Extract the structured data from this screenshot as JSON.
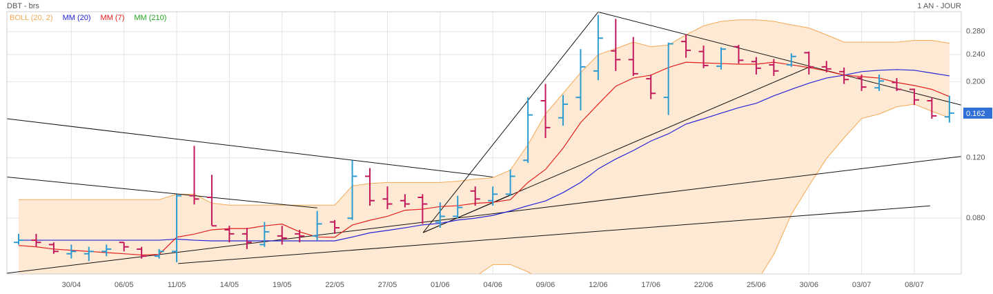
{
  "chart_data": {
    "type": "ohlc",
    "title": "DBT - brs",
    "period": "1 AN - JOUR",
    "categories": [
      null,
      null,
      null,
      "30/04",
      null,
      null,
      "06/05",
      null,
      null,
      "11/05",
      null,
      null,
      "14/05",
      null,
      null,
      "19/05",
      null,
      null,
      "22/05",
      null,
      null,
      "27/05",
      null,
      null,
      "01/06",
      null,
      null,
      "04/06",
      null,
      null,
      "09/06",
      null,
      null,
      "12/06",
      null,
      null,
      "17/06",
      null,
      null,
      "22/06",
      null,
      null,
      "25/06",
      null,
      null,
      "30/06",
      null,
      null,
      "03/07",
      null,
      null,
      "08/07",
      null,
      null
    ],
    "open": [
      0.068,
      0.069,
      0.067,
      0.063,
      0.063,
      0.064,
      0.068,
      0.065,
      0.062,
      0.064,
      0.093,
      0.092,
      0.074,
      0.072,
      0.067,
      0.071,
      0.072,
      0.071,
      0.078,
      0.08,
      0.106,
      0.091,
      0.09,
      0.092,
      0.078,
      0.081,
      0.096,
      0.09,
      0.094,
      0.118,
      0.176,
      0.157,
      0.18,
      0.215,
      0.246,
      0.232,
      0.204,
      0.18,
      0.262,
      0.245,
      0.222,
      0.253,
      0.229,
      0.224,
      0.224,
      0.243,
      0.221,
      0.214,
      0.205,
      0.192,
      0.199,
      0.19,
      0.176,
      0.158
    ],
    "high": [
      0.072,
      0.072,
      0.068,
      0.067,
      0.066,
      0.067,
      0.068,
      0.066,
      0.065,
      0.094,
      0.13,
      0.107,
      0.076,
      0.075,
      0.078,
      0.076,
      0.074,
      0.084,
      0.079,
      0.118,
      0.112,
      0.099,
      0.094,
      0.094,
      0.089,
      0.093,
      0.099,
      0.099,
      0.111,
      0.18,
      0.197,
      0.183,
      0.249,
      0.313,
      0.305,
      0.27,
      0.21,
      0.26,
      0.275,
      0.255,
      0.252,
      0.256,
      0.236,
      0.233,
      0.242,
      0.245,
      0.23,
      0.22,
      0.21,
      0.21,
      0.205,
      0.191,
      0.18,
      0.182
    ],
    "low": [
      0.067,
      0.066,
      0.063,
      0.061,
      0.06,
      0.062,
      0.064,
      0.061,
      0.061,
      0.0595,
      0.0877,
      0.0761,
      0.068,
      0.065,
      0.066,
      0.067,
      0.068,
      0.069,
      0.072,
      0.079,
      0.087,
      0.085,
      0.086,
      0.077,
      0.075,
      0.08,
      0.087,
      0.087,
      0.093,
      0.116,
      0.137,
      0.149,
      0.165,
      0.202,
      0.215,
      0.208,
      0.178,
      0.16,
      0.235,
      0.219,
      0.217,
      0.226,
      0.21,
      0.208,
      0.221,
      0.21,
      0.213,
      0.197,
      0.188,
      0.188,
      0.188,
      0.171,
      0.156,
      0.152
    ],
    "close": [
      0.069,
      0.068,
      0.064,
      0.064,
      0.064,
      0.065,
      0.066,
      0.062,
      0.064,
      0.093,
      0.091,
      0.076,
      0.072,
      0.068,
      0.073,
      0.07,
      0.071,
      0.077,
      0.075,
      0.106,
      0.09,
      0.088,
      0.088,
      0.088,
      0.081,
      0.086,
      0.091,
      0.094,
      0.106,
      0.16,
      0.147,
      0.172,
      0.221,
      0.268,
      0.232,
      0.211,
      0.185,
      0.258,
      0.247,
      0.223,
      0.249,
      0.231,
      0.219,
      0.215,
      0.237,
      0.221,
      0.218,
      0.203,
      0.193,
      0.201,
      0.19,
      0.177,
      0.159,
      0.162
    ],
    "up_color": "#2b9bd2",
    "down_color": "#c2185b",
    "overlays": [
      {
        "name": "BOLL (20, 2)",
        "color": "#f3a953",
        "fill": "#fde9d4",
        "upper": [
          0.0906,
          0.0906,
          0.0906,
          0.0906,
          0.0906,
          0.0906,
          0.0906,
          0.0906,
          0.0906,
          0.094,
          0.094,
          0.0885,
          0.0873,
          0.0873,
          0.0873,
          0.0873,
          0.0873,
          0.0873,
          0.0873,
          0.0994,
          0.101,
          0.1017,
          0.1017,
          0.1017,
          0.1017,
          0.1025,
          0.104,
          0.105,
          0.1105,
          0.131,
          0.161,
          0.185,
          0.2125,
          0.2398,
          0.2497,
          0.261,
          0.253,
          0.256,
          0.274,
          0.291,
          0.3,
          0.303,
          0.303,
          0.3,
          0.293,
          0.287,
          0.274,
          0.261,
          0.261,
          0.261,
          0.261,
          0.264,
          0.264,
          0.259
        ],
        "lower": [
          0.054,
          0.054,
          0.054,
          0.054,
          0.054,
          0.054,
          0.054,
          0.054,
          0.054,
          0.054,
          0.054,
          0.054,
          0.054,
          0.054,
          0.054,
          0.054,
          0.054,
          0.054,
          0.054,
          0.054,
          0.054,
          0.054,
          0.054,
          0.054,
          0.054,
          0.054,
          0.054,
          0.0586,
          0.0586,
          0.0558,
          0.052,
          0.052,
          0.052,
          0.052,
          0.052,
          0.052,
          0.052,
          0.052,
          0.052,
          0.052,
          0.052,
          0.052,
          0.052,
          0.0627,
          0.0821,
          0.0994,
          0.1194,
          0.1372,
          0.1562,
          0.161,
          0.169,
          0.172,
          0.164,
          0.157
        ]
      },
      {
        "name": "MM (20)",
        "color": "#2323d8",
        "values": [
          0.069,
          0.069,
          0.069,
          0.069,
          0.069,
          0.069,
          0.069,
          0.069,
          0.069,
          0.0695,
          0.069,
          0.0687,
          0.0687,
          0.0687,
          0.0687,
          0.0687,
          0.0687,
          0.0687,
          0.0687,
          0.0705,
          0.0725,
          0.0737,
          0.075,
          0.0765,
          0.0773,
          0.079,
          0.08,
          0.0815,
          0.084,
          0.087,
          0.0898,
          0.095,
          0.1017,
          0.1114,
          0.119,
          0.126,
          0.1343,
          0.141,
          0.1505,
          0.156,
          0.162,
          0.168,
          0.173,
          0.182,
          0.19,
          0.198,
          0.205,
          0.209,
          0.214,
          0.216,
          0.217,
          0.216,
          0.212,
          0.208
        ]
      },
      {
        "name": "MM (7)",
        "color": "#e3201f",
        "values": [
          0.0666,
          0.066,
          0.065,
          0.0645,
          0.064,
          0.0635,
          0.063,
          0.0625,
          0.0627,
          0.0704,
          0.0719,
          0.074,
          0.0746,
          0.0746,
          0.076,
          0.0769,
          0.073,
          0.0705,
          0.0704,
          0.0764,
          0.0789,
          0.081,
          0.0844,
          0.085,
          0.0865,
          0.087,
          0.0884,
          0.089,
          0.0906,
          0.1017,
          0.111,
          0.128,
          0.152,
          0.172,
          0.194,
          0.205,
          0.209,
          0.22,
          0.228,
          0.227,
          0.226,
          0.225,
          0.225,
          0.228,
          0.224,
          0.22,
          0.215,
          0.209,
          0.207,
          0.205,
          0.199,
          0.195,
          0.19,
          0.181
        ]
      },
      {
        "name": "MM (210)",
        "color": "#22a622",
        "values": [
          null,
          null,
          null,
          null,
          null,
          null,
          null,
          null,
          null,
          null,
          null,
          null,
          null,
          null,
          null,
          null,
          null,
          null,
          null,
          null,
          null,
          null,
          null,
          null,
          null,
          null,
          null,
          null,
          null,
          null,
          null,
          null,
          null,
          null,
          null,
          null,
          null,
          null,
          null,
          null,
          null,
          null,
          null,
          null,
          null,
          null,
          null,
          null,
          null,
          null,
          null,
          null,
          null,
          null
        ]
      }
    ],
    "trendlines": [
      {
        "x": [
          -0.67,
          27
        ],
        "y": [
          0.156,
          0.1055
        ]
      },
      {
        "x": [
          -0.67,
          17
        ],
        "y": [
          0.1055,
          0.0857
        ]
      },
      {
        "x": [
          -0.67,
          53.67
        ],
        "y": [
          0.0553,
          0.1211
        ]
      },
      {
        "x": [
          9.08,
          51.9
        ],
        "y": [
          0.059,
          0.0869
        ]
      },
      {
        "x": [
          23.03,
          33
        ],
        "y": [
          0.0726,
          0.3195
        ]
      },
      {
        "x": [
          23.03,
          45
        ],
        "y": [
          0.0726,
          0.2205
        ]
      },
      {
        "x": [
          23.03,
          28.1
        ],
        "y": [
          0.0726,
          0.094
        ]
      },
      {
        "x": [
          33,
          53.67
        ],
        "y": [
          0.3195,
          0.171
        ]
      }
    ],
    "last": 0.162,
    "ylim": [
      0.055,
      0.32
    ],
    "log": true,
    "yticks": [
      {
        "value": 0.08,
        "label": "0.080"
      },
      {
        "value": 0.12,
        "label": "0.120"
      },
      {
        "value": 0.2,
        "label": "0.200"
      },
      {
        "value": 0.24,
        "label": "0.240"
      },
      {
        "value": 0.28,
        "label": "0.280"
      }
    ],
    "grid": true
  }
}
